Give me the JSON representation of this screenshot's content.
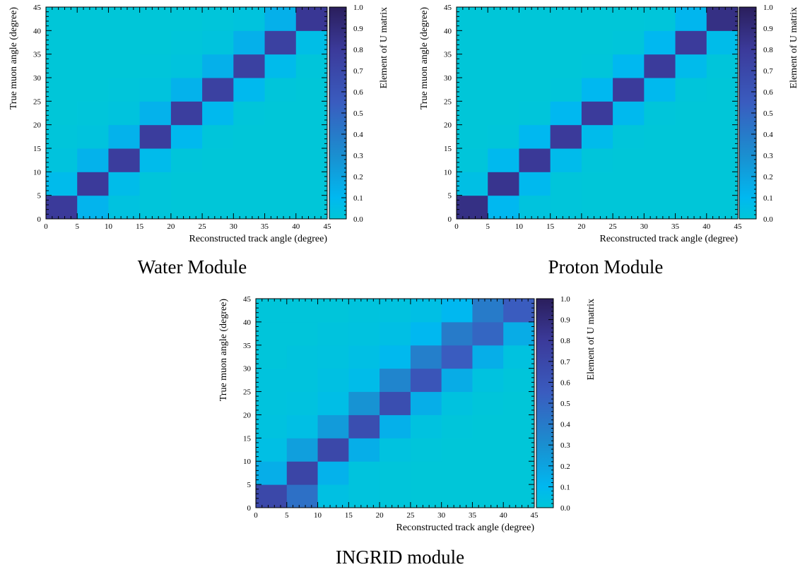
{
  "colorscale": {
    "stops": [
      "#00c6d8",
      "#00b8f0",
      "#1a8fd0",
      "#3a5cbf",
      "#3b3a9a",
      "#2a1e5c"
    ],
    "stop_values": [
      0.0,
      0.1,
      0.3,
      0.55,
      0.8,
      1.0
    ]
  },
  "chart_data": [
    {
      "type": "heatmap",
      "caption": "Water Module",
      "xlabel": "Reconstructed track angle (degree)",
      "ylabel": "True muon angle (degree)",
      "colorbar_label": "Element of U matrix",
      "x_ticks": [
        "0",
        "5",
        "10",
        "15",
        "20",
        "25",
        "30",
        "35",
        "40",
        "45"
      ],
      "y_ticks": [
        "0",
        "5",
        "10",
        "15",
        "20",
        "25",
        "30",
        "35",
        "40",
        "45"
      ],
      "colorbar_ticks": [
        "0.0",
        "0.1",
        "0.2",
        "0.3",
        "0.4",
        "0.5",
        "0.6",
        "0.7",
        "0.8",
        "0.9",
        "1.0"
      ],
      "xlim": [
        0,
        45
      ],
      "ylim": [
        0,
        45
      ],
      "zlim": [
        0,
        1
      ],
      "x_bin_edges": [
        0,
        5,
        10,
        15,
        20,
        25,
        30,
        35,
        40,
        45
      ],
      "y_bin_edges": [
        0,
        5,
        10,
        15,
        20,
        25,
        30,
        35,
        40,
        45
      ],
      "z": [
        [
          0.8,
          0.12,
          0.03,
          0.01,
          0.0,
          0.0,
          0.0,
          0.0,
          0.0
        ],
        [
          0.08,
          0.8,
          0.07,
          0.01,
          0.0,
          0.0,
          0.0,
          0.0,
          0.0
        ],
        [
          0.02,
          0.13,
          0.78,
          0.08,
          0.01,
          0.0,
          0.0,
          0.0,
          0.0
        ],
        [
          0.01,
          0.02,
          0.13,
          0.78,
          0.09,
          0.01,
          0.0,
          0.0,
          0.0
        ],
        [
          0.0,
          0.01,
          0.02,
          0.13,
          0.77,
          0.09,
          0.01,
          0.0,
          0.0
        ],
        [
          0.0,
          0.0,
          0.01,
          0.02,
          0.13,
          0.75,
          0.09,
          0.01,
          0.0
        ],
        [
          0.0,
          0.0,
          0.0,
          0.01,
          0.02,
          0.14,
          0.75,
          0.08,
          0.01
        ],
        [
          0.0,
          0.0,
          0.0,
          0.0,
          0.01,
          0.02,
          0.14,
          0.75,
          0.06
        ],
        [
          0.0,
          0.0,
          0.0,
          0.0,
          0.0,
          0.01,
          0.02,
          0.14,
          0.82
        ]
      ]
    },
    {
      "type": "heatmap",
      "caption": "Proton Module",
      "xlabel": "Reconstructed track angle (degree)",
      "ylabel": "True muon angle (degree)",
      "colorbar_label": "Element of U matrix",
      "x_ticks": [
        "0",
        "5",
        "10",
        "15",
        "20",
        "25",
        "30",
        "35",
        "40",
        "45"
      ],
      "y_ticks": [
        "0",
        "5",
        "10",
        "15",
        "20",
        "25",
        "30",
        "35",
        "40",
        "45"
      ],
      "colorbar_ticks": [
        "0.0",
        "0.1",
        "0.2",
        "0.3",
        "0.4",
        "0.5",
        "0.6",
        "0.7",
        "0.8",
        "0.9",
        "1.0"
      ],
      "xlim": [
        0,
        45
      ],
      "ylim": [
        0,
        45
      ],
      "zlim": [
        0,
        1
      ],
      "x_bin_edges": [
        0,
        5,
        10,
        15,
        20,
        25,
        30,
        35,
        40,
        45
      ],
      "y_bin_edges": [
        0,
        5,
        10,
        15,
        20,
        25,
        30,
        35,
        40,
        45
      ],
      "z": [
        [
          0.87,
          0.1,
          0.02,
          0.01,
          0.0,
          0.0,
          0.0,
          0.0,
          0.0
        ],
        [
          0.05,
          0.84,
          0.09,
          0.01,
          0.0,
          0.0,
          0.0,
          0.0,
          0.0
        ],
        [
          0.01,
          0.09,
          0.81,
          0.08,
          0.01,
          0.0,
          0.0,
          0.0,
          0.0
        ],
        [
          0.0,
          0.01,
          0.1,
          0.8,
          0.08,
          0.01,
          0.0,
          0.0,
          0.0
        ],
        [
          0.0,
          0.0,
          0.01,
          0.1,
          0.79,
          0.09,
          0.01,
          0.0,
          0.0
        ],
        [
          0.0,
          0.0,
          0.0,
          0.01,
          0.1,
          0.79,
          0.09,
          0.01,
          0.0
        ],
        [
          0.0,
          0.0,
          0.0,
          0.0,
          0.01,
          0.1,
          0.79,
          0.08,
          0.01
        ],
        [
          0.0,
          0.0,
          0.0,
          0.0,
          0.0,
          0.01,
          0.1,
          0.79,
          0.07
        ],
        [
          0.0,
          0.0,
          0.0,
          0.0,
          0.0,
          0.0,
          0.01,
          0.11,
          0.87
        ]
      ]
    },
    {
      "type": "heatmap",
      "caption": "INGRID module",
      "xlabel": "Reconstructed track angle (degree)",
      "ylabel": "True muon angle (degree)",
      "colorbar_label": "Element of U matrix",
      "x_ticks": [
        "0",
        "5",
        "10",
        "15",
        "20",
        "25",
        "30",
        "35",
        "40",
        "45"
      ],
      "y_ticks": [
        "0",
        "5",
        "10",
        "15",
        "20",
        "25",
        "30",
        "35",
        "40",
        "45"
      ],
      "colorbar_ticks": [
        "0.0",
        "0.1",
        "0.2",
        "0.3",
        "0.4",
        "0.5",
        "0.6",
        "0.7",
        "0.8",
        "0.9",
        "1.0"
      ],
      "xlim": [
        0,
        45
      ],
      "ylim": [
        0,
        45
      ],
      "zlim": [
        0,
        1
      ],
      "x_bin_edges": [
        0,
        5,
        10,
        15,
        20,
        25,
        30,
        35,
        40,
        45
      ],
      "y_bin_edges": [
        0,
        5,
        10,
        15,
        20,
        25,
        30,
        35,
        40,
        45
      ],
      "z": [
        [
          0.7,
          0.45,
          0.04,
          0.02,
          0.01,
          0.0,
          0.0,
          0.0,
          0.0
        ],
        [
          0.15,
          0.72,
          0.13,
          0.02,
          0.01,
          0.0,
          0.0,
          0.0,
          0.0
        ],
        [
          0.05,
          0.22,
          0.7,
          0.15,
          0.03,
          0.01,
          0.0,
          0.0,
          0.0
        ],
        [
          0.03,
          0.05,
          0.24,
          0.65,
          0.14,
          0.03,
          0.01,
          0.0,
          0.0
        ],
        [
          0.02,
          0.03,
          0.06,
          0.28,
          0.65,
          0.15,
          0.03,
          0.01,
          0.0
        ],
        [
          0.02,
          0.02,
          0.04,
          0.07,
          0.35,
          0.6,
          0.16,
          0.03,
          0.01
        ],
        [
          0.01,
          0.02,
          0.03,
          0.05,
          0.09,
          0.38,
          0.55,
          0.15,
          0.03
        ],
        [
          0.01,
          0.01,
          0.02,
          0.03,
          0.05,
          0.1,
          0.4,
          0.5,
          0.16
        ],
        [
          0.01,
          0.01,
          0.01,
          0.02,
          0.03,
          0.05,
          0.1,
          0.4,
          0.55
        ]
      ]
    }
  ]
}
